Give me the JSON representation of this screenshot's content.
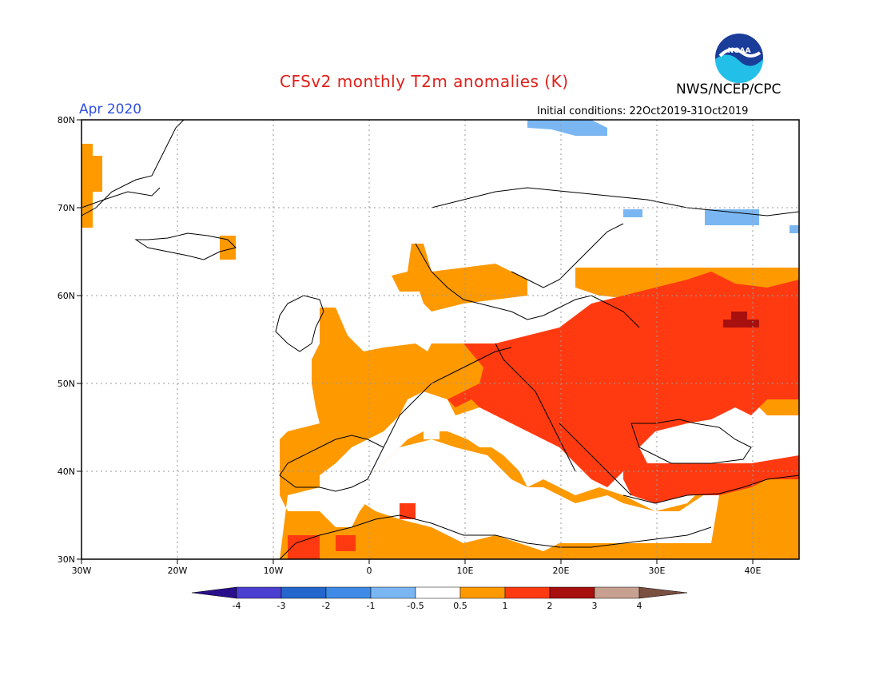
{
  "header": {
    "title": "CFSv2 monthly T2m anomalies (K)",
    "agency": "NWS/NCEP/CPC",
    "period": "Apr 2020",
    "initial_conditions": "Initial conditions: 22Oct2019-31Oct2019",
    "logo_text": "NOAA"
  },
  "map": {
    "lat_labels": [
      "80N",
      "70N",
      "60N",
      "50N",
      "40N",
      "30N"
    ],
    "lon_labels": [
      "30W",
      "20W",
      "10W",
      "0",
      "10E",
      "20E",
      "30E",
      "40E"
    ],
    "extent": {
      "lon": [
        -30,
        45
      ],
      "lat": [
        30,
        80
      ]
    },
    "grid": true,
    "anomaly_regions": [
      {
        "name": "Greenland east coast",
        "category": "0.5 to 1"
      },
      {
        "name": "Iberia, France, Central Europe, North Africa",
        "category": "0.5 to 1"
      },
      {
        "name": "Eastern Europe and Russia",
        "category": "1 to 2"
      },
      {
        "name": "Central Russia",
        "category": "2 to 3"
      },
      {
        "name": "Svalbard",
        "category": "-1 to -0.5"
      },
      {
        "name": "Kola Peninsula",
        "category": "-1 to -0.5"
      }
    ]
  },
  "legend": {
    "labels": [
      "-4",
      "-3",
      "-2",
      "-1",
      "-0.5",
      "0.5",
      "1",
      "2",
      "3",
      "4"
    ],
    "colors": [
      "#2a0f8a",
      "#4a3fd0",
      "#2466cc",
      "#3f8ae6",
      "#7ab7f2",
      "#ffffff",
      "#ff9900",
      "#ff3a10",
      "#a80f0f",
      "#c8a090",
      "#7a5040"
    ]
  }
}
